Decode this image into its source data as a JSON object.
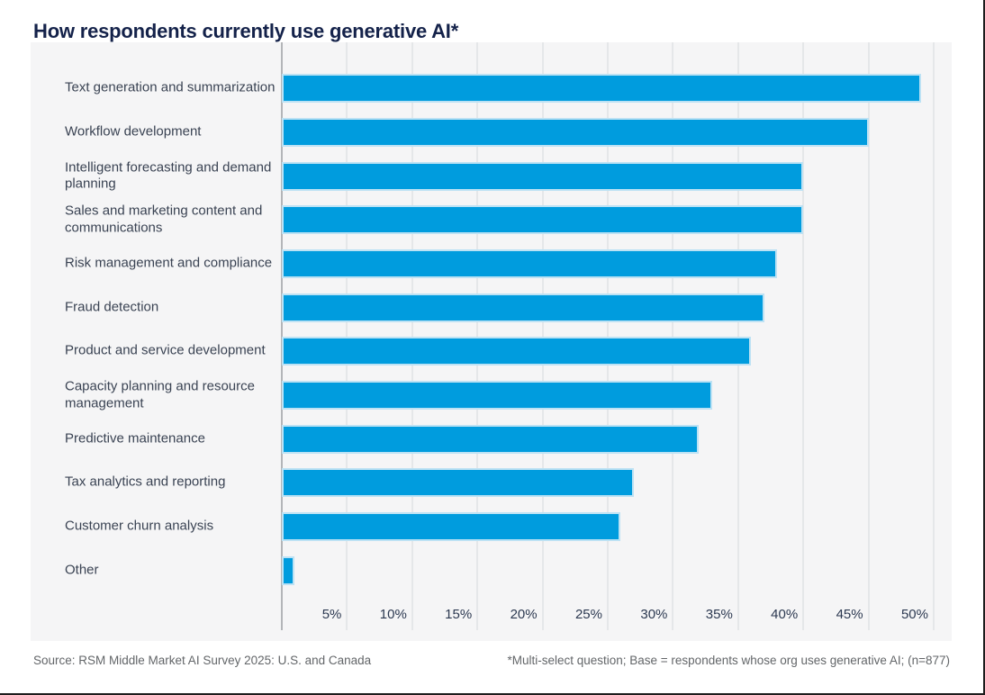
{
  "page": {
    "title": "How respondents currently use generative AI*",
    "source": "Source: RSM Middle Market AI Survey 2025: U.S. and Canada",
    "note": "*Multi-select question; Base = respondents whose org uses generative AI; (n=877)"
  },
  "chart_data": {
    "type": "bar",
    "orientation": "horizontal",
    "title": "How respondents currently use generative AI*",
    "categories": [
      "Text generation and summarization",
      "Workflow development",
      "Intelligent forecasting and demand planning",
      "Sales and marketing content and communications",
      "Risk management and compliance",
      "Fraud detection",
      "Product and service development",
      "Capacity planning and resource management",
      "Predictive maintenance",
      "Tax analytics and reporting",
      "Customer churn analysis",
      "Other"
    ],
    "values": [
      49,
      45,
      40,
      40,
      38,
      37,
      36,
      33,
      32,
      27,
      26,
      1
    ],
    "unit": "%",
    "x_ticks": [
      "5%",
      "10%",
      "15%",
      "20%",
      "25%",
      "30%",
      "35%",
      "40%",
      "45%",
      "50%"
    ],
    "x_tick_values": [
      5,
      10,
      15,
      20,
      25,
      30,
      35,
      40,
      45,
      50
    ],
    "xlim": [
      0,
      51.5
    ],
    "grid": "vertical-only",
    "legend": "none",
    "colors": {
      "bar": "#009cde",
      "bar_edge": "#bde2f4",
      "panel_bg": "#f5f5f6",
      "gridline": "#e5e7e9",
      "axis_line": "#b3b5b8",
      "title_text": "#14224a",
      "label_text": "#3a4353",
      "tick_text": "#2b3850",
      "footer_text": "#636669"
    }
  }
}
